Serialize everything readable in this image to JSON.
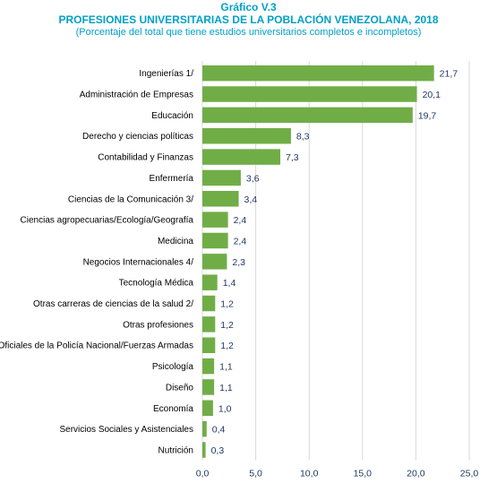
{
  "titles": {
    "label": "Gráfico V.3",
    "title": "PROFESIONES UNIVERSITARIAS DE LA POBLACIÓN VENEZOLANA, 2018",
    "subtitle": "(Porcentaje del total que tiene estudios universitarios completos e incompletos)"
  },
  "colors": {
    "bar": "#70ad47",
    "title": "#00a0c6",
    "grid": "#d9d9d9",
    "value_text": "#1f3864"
  },
  "chart_data": {
    "type": "bar",
    "orientation": "horizontal",
    "title": "PROFESIONES UNIVERSITARIAS DE LA POBLACIÓN VENEZOLANA, 2018",
    "subtitle": "(Porcentaje del total que tiene estudios universitarios completos e incompletos)",
    "categories": [
      "Ingenierías 1/",
      "Administración de Empresas",
      "Educación",
      "Derecho y ciencias políticas",
      "Contabilidad y Finanzas",
      "Enfermería",
      "Ciencias de la  Comunicación 3/",
      "Ciencias agropecuarias/Ecología/Geografía",
      "Medicina",
      "Negocios Internacionales 4/",
      "Tecnología Médica",
      "Otras carreras de ciencias de la salud 2/",
      "Otras profesiones",
      "Oficiales de la  Policía Nacional/Fuerzas Armadas",
      "Psicología",
      "Diseño",
      "Economía",
      "Servicios Sociales y Asistenciales",
      "Nutrición"
    ],
    "values": [
      21.7,
      20.1,
      19.7,
      8.3,
      7.3,
      3.6,
      3.4,
      2.4,
      2.4,
      2.3,
      1.4,
      1.2,
      1.2,
      1.2,
      1.1,
      1.1,
      1.0,
      0.4,
      0.3
    ],
    "value_labels": [
      "21,7",
      "20,1",
      "19,7",
      "8,3",
      "7,3",
      "3,6",
      "3,4",
      "2,4",
      "2,4",
      "2,3",
      "1,4",
      "1,2",
      "1,2",
      "1,2",
      "1,1",
      "1,1",
      "1,0",
      "0,4",
      "0,3"
    ],
    "xlim": [
      0,
      25
    ],
    "xticks": [
      0,
      5,
      10,
      15,
      20,
      25
    ],
    "xtick_labels": [
      "0,0",
      "5,0",
      "10,0",
      "15,0",
      "20,0",
      "25,0"
    ],
    "grid": true,
    "xlabel": "",
    "ylabel": ""
  }
}
